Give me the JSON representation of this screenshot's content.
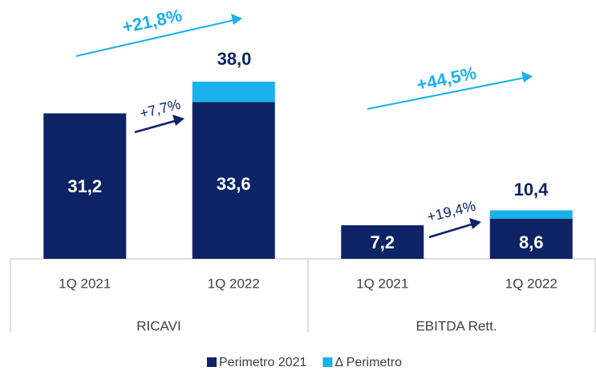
{
  "chart_data": {
    "type": "stacked_bar",
    "groups": [
      "RICAVI",
      "EBITDA Rett."
    ],
    "categories": [
      "1Q 2021",
      "1Q 2022",
      "1Q 2021",
      "1Q 2022"
    ],
    "series": [
      {
        "name": "Perimetro 2021",
        "color": "#0d2366",
        "values": [
          31.2,
          33.6,
          7.2,
          8.6
        ],
        "value_labels": [
          "31,2",
          "33,6",
          "7,2",
          "8,6"
        ]
      },
      {
        "name": "Δ Perimetro",
        "color": "#1ab0ec",
        "values": [
          null,
          4.4,
          null,
          1.8
        ]
      }
    ],
    "annotations": [
      {
        "text": "38,0"
      },
      {
        "text": "10,4"
      },
      {
        "text": "+21,8%"
      },
      {
        "text": "+7,7%"
      },
      {
        "text": "+44,5%"
      },
      {
        "text": "+19,4%"
      }
    ],
    "ylim": [
      0,
      55
    ],
    "legend": "bottom"
  }
}
